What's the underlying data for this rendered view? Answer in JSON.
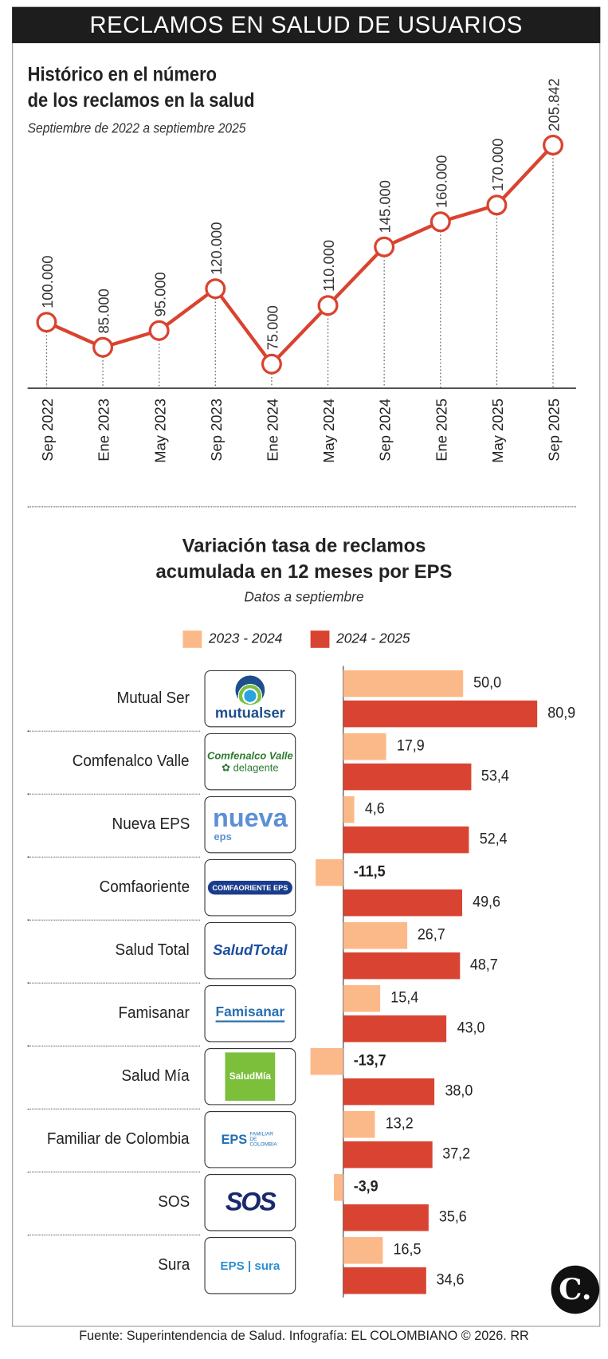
{
  "header": {
    "title": "RECLAMOS EN SALUD DE USUARIOS"
  },
  "colors": {
    "light": "#fbb98a",
    "dark": "#d94432",
    "line": "#d9432f"
  },
  "chart_data": [
    {
      "type": "line",
      "title": "Histórico en el número",
      "title_line2": "de los reclamos en la salud",
      "subtitle": "Septiembre de 2022 a septiembre 2025",
      "categories": [
        "Sep 2022",
        "Ene 2023",
        "May 2023",
        "Sep 2023",
        "Ene 2024",
        "May 2024",
        "Sep 2024",
        "Ene 2025",
        "May 2025",
        "Sep 2025"
      ],
      "values": [
        100000,
        85000,
        95000,
        120000,
        75000,
        110000,
        145000,
        160000,
        170000,
        205842
      ],
      "labels": [
        "100.000",
        "85.000",
        "95.000",
        "120.000",
        "75.000",
        "110.000",
        "145.000",
        "160.000",
        "170.000",
        "205.842"
      ]
    },
    {
      "type": "bar",
      "title": "Variación tasa de reclamos",
      "title_line2": "acumulada en 12 meses por EPS",
      "subtitle": "Datos a septiembre",
      "legend": [
        "2023 - 2024",
        "2024 - 2025"
      ],
      "categories": [
        "Mutual Ser",
        "Comfenalco Valle",
        "Nueva EPS",
        "Comfaoriente",
        "Salud Total",
        "Famisanar",
        "Salud Mía",
        "Familiar de Colombia",
        "SOS",
        "Sura"
      ],
      "series": [
        {
          "name": "2023 - 2024",
          "values": [
            50.0,
            17.9,
            4.6,
            -11.5,
            26.7,
            15.4,
            -13.7,
            13.2,
            -3.9,
            16.5
          ],
          "labels": [
            "50,0",
            "17,9",
            "4,6",
            "-11,5",
            "26,7",
            "15,4",
            "-13,7",
            "13,2",
            "-3,9",
            "16,5"
          ]
        },
        {
          "name": "2024 - 2025",
          "values": [
            80.9,
            53.4,
            52.4,
            49.6,
            48.7,
            43.0,
            38.0,
            37.2,
            35.6,
            34.6
          ],
          "labels": [
            "80,9",
            "53,4",
            "52,4",
            "49,6",
            "48,7",
            "43,0",
            "38,0",
            "37,2",
            "35,6",
            "34,6"
          ]
        }
      ]
    }
  ],
  "logos": [
    {
      "text": "mutualser"
    },
    {
      "text": "Comfenalco Valle",
      "text2": "delagente"
    },
    {
      "text": "nueva",
      "text2": "eps"
    },
    {
      "text": "COMFAORIENTE EPS"
    },
    {
      "text": "SaludTotal"
    },
    {
      "text": "Famisanar"
    },
    {
      "text": "SaludMía"
    },
    {
      "text": "EPS",
      "text2": "FAMILIAR DE COLOMBIA"
    },
    {
      "text": "SOS"
    },
    {
      "text": "EPS | sura"
    }
  ],
  "footer": "Fuente: Superintendencia de Salud. Infografía: EL COLOMBIANO © 2026. RR",
  "brand": "C."
}
